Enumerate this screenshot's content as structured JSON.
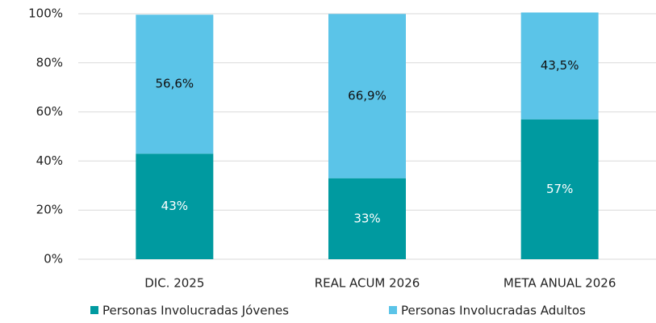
{
  "chart_data": {
    "type": "stacked_bar",
    "categories": [
      "DIC. 2025",
      "REAL ACUM 2026",
      "META ANUAL 2026"
    ],
    "series": [
      {
        "name": "Personas Involucradas Jóvenes",
        "color": "#009aa0",
        "label_color": "#ffffff",
        "values": [
          43,
          33,
          57
        ],
        "value_labels": [
          "43%",
          "33%",
          "57%"
        ]
      },
      {
        "name": "Personas Involucradas Adultos",
        "color": "#5bc4e8",
        "label_color": "#111111",
        "values": [
          56.6,
          66.9,
          43.5
        ],
        "value_labels": [
          "56,6%",
          "66,9%",
          "43,5%"
        ]
      }
    ],
    "ylim": [
      0,
      100
    ],
    "yticks": [
      {
        "value": 0,
        "label": "0%"
      },
      {
        "value": 20,
        "label": "20%"
      },
      {
        "value": 40,
        "label": "40%"
      },
      {
        "value": 60,
        "label": "60%"
      },
      {
        "value": 80,
        "label": "80%"
      },
      {
        "value": 100,
        "label": "100%"
      }
    ],
    "grid": true,
    "legend": "bottom"
  }
}
